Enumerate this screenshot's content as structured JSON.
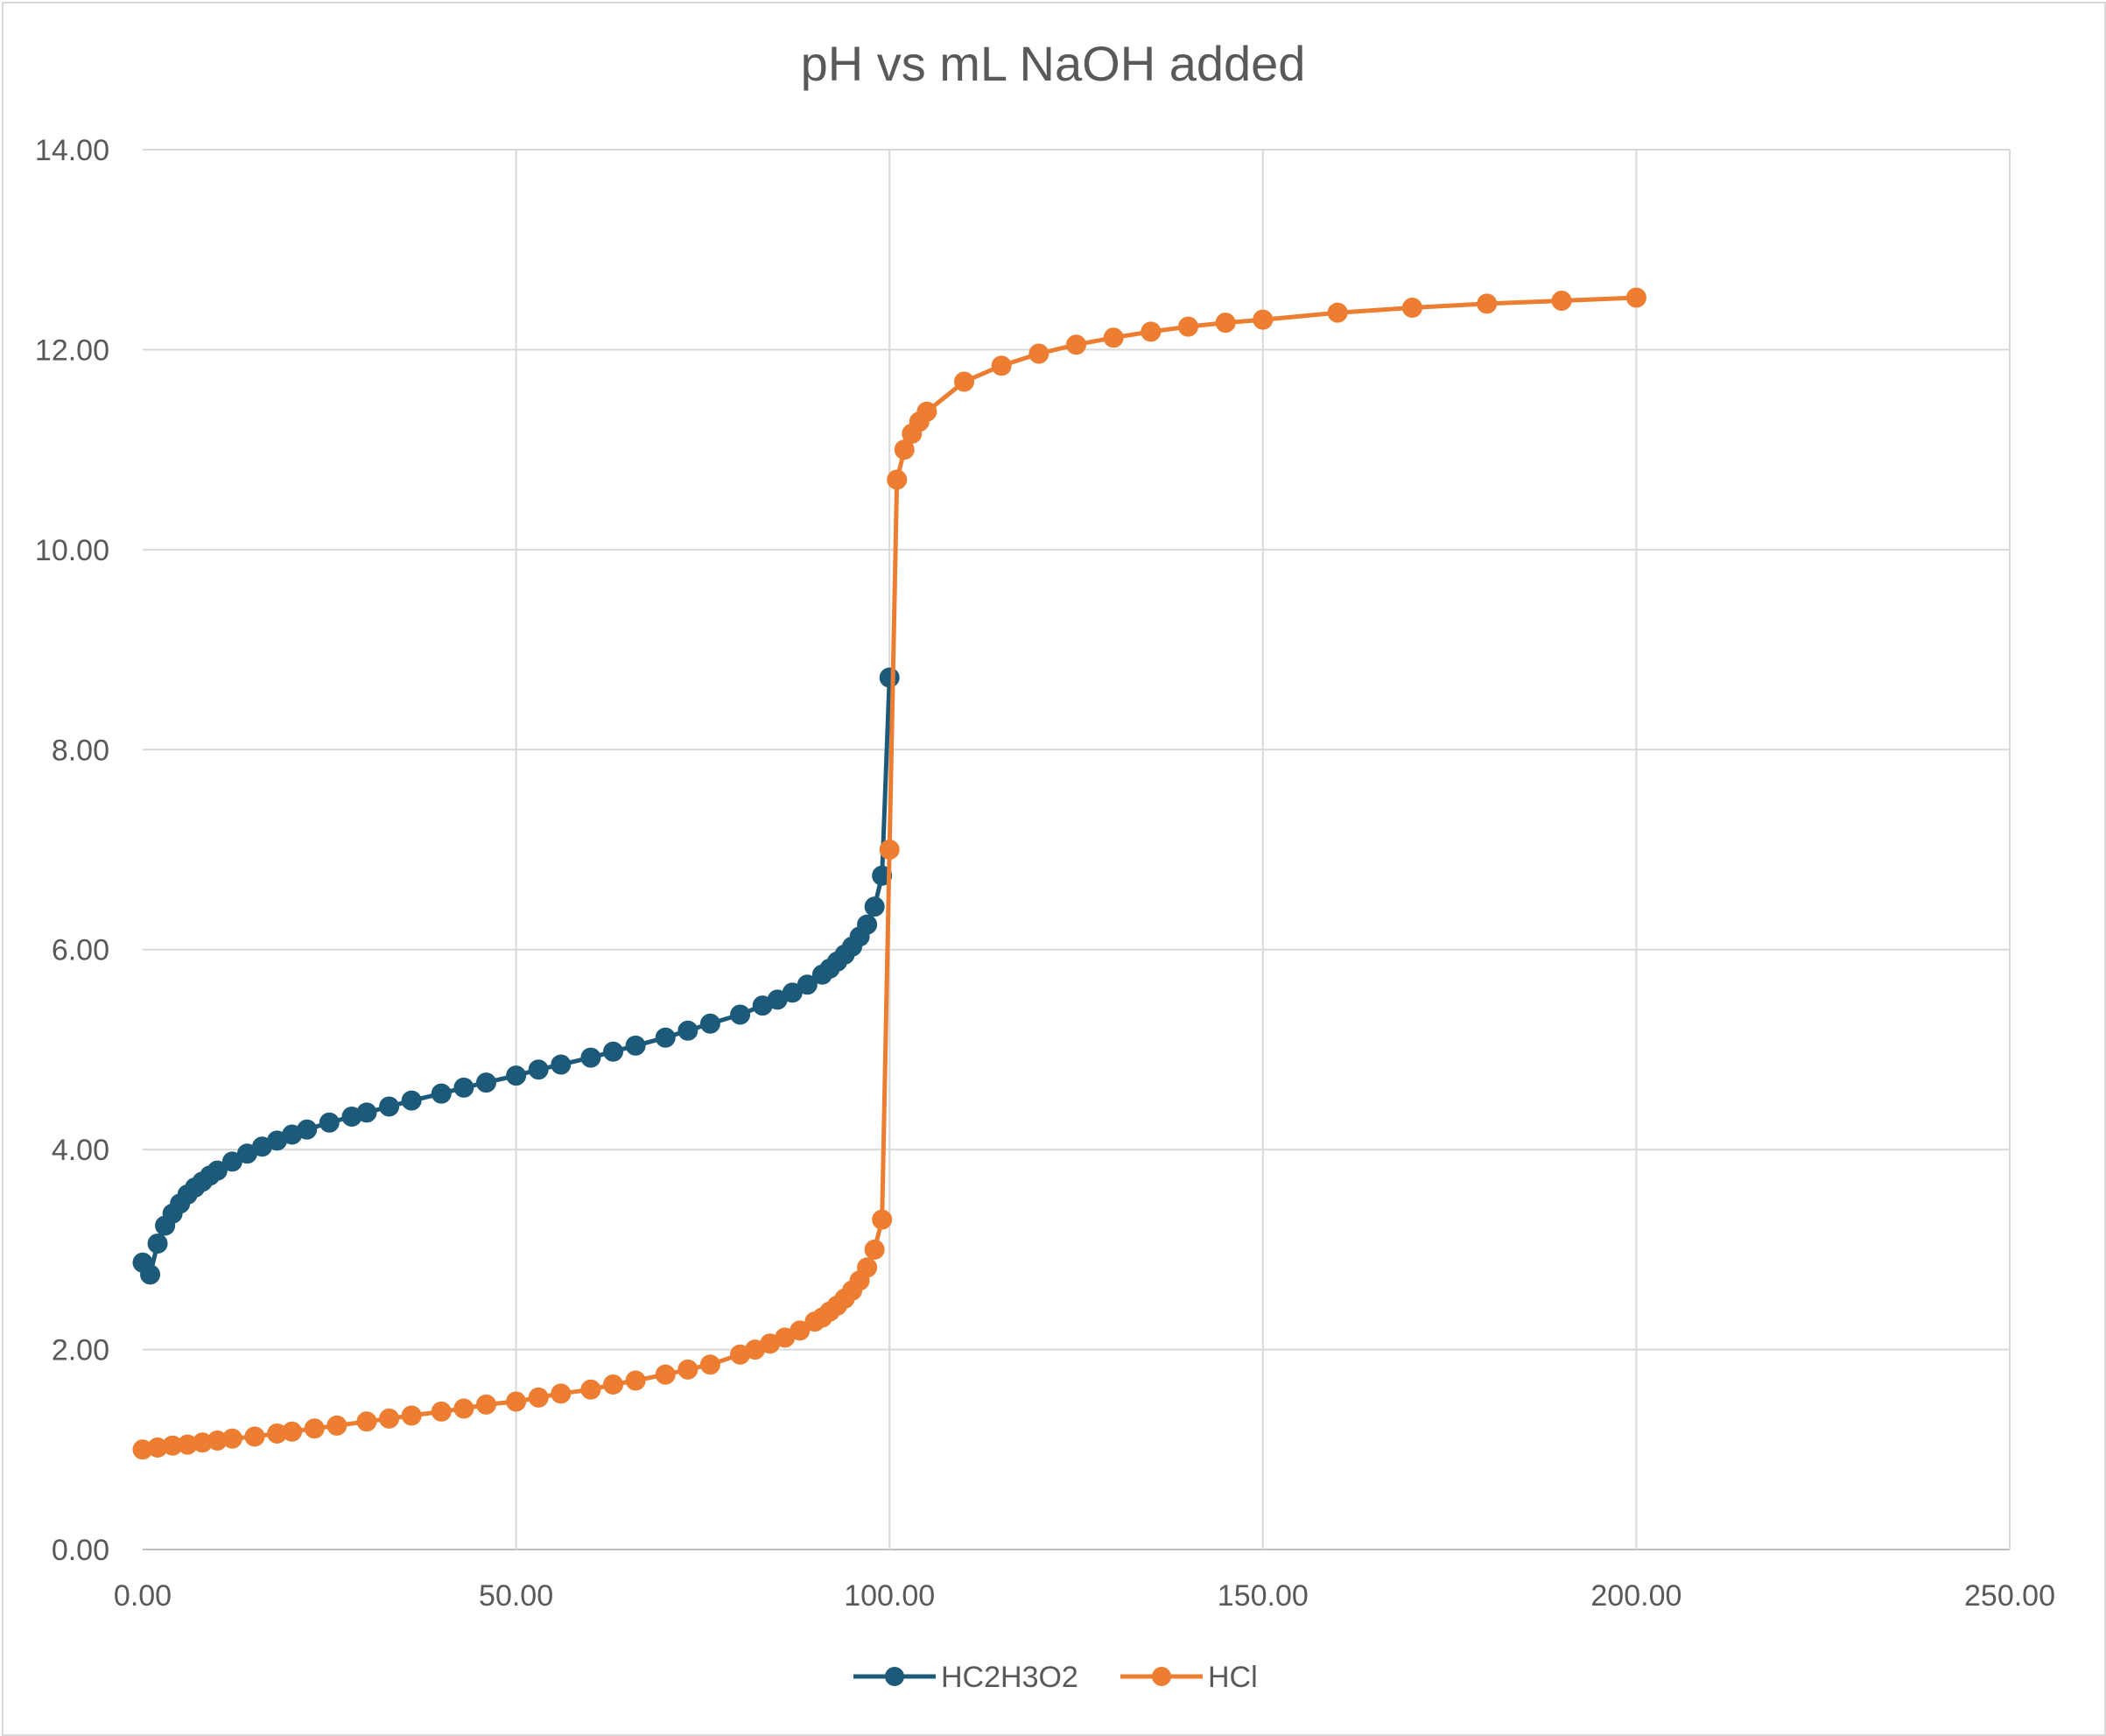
{
  "chart_data": {
    "type": "scatter",
    "title": "pH vs mL NaOH added",
    "xlabel": "",
    "ylabel": "",
    "xlim": [
      0,
      250
    ],
    "ylim": [
      0,
      14
    ],
    "x_ticks": [
      "0.00",
      "50.00",
      "100.00",
      "150.00",
      "200.00",
      "250.00"
    ],
    "y_ticks": [
      "0.00",
      "2.00",
      "4.00",
      "6.00",
      "8.00",
      "10.00",
      "12.00",
      "14.00"
    ],
    "grid": true,
    "legend_position": "bottom",
    "series": [
      {
        "name": "HC2H3O2",
        "color": "#1d5a7a",
        "marker": "circle",
        "x": [
          0,
          1,
          2,
          3,
          4,
          5,
          6,
          7,
          8,
          9,
          10,
          12,
          14,
          16,
          18,
          20,
          22,
          25,
          28,
          30,
          33,
          36,
          40,
          43,
          46,
          50,
          53,
          56,
          60,
          63,
          66,
          70,
          73,
          76,
          80,
          83,
          85,
          87,
          89,
          91,
          92,
          93,
          94,
          95,
          96,
          97,
          98,
          99,
          100
        ],
        "y": [
          2.87,
          2.75,
          3.06,
          3.24,
          3.36,
          3.46,
          3.55,
          3.62,
          3.68,
          3.74,
          3.79,
          3.88,
          3.96,
          4.03,
          4.09,
          4.15,
          4.2,
          4.27,
          4.33,
          4.37,
          4.43,
          4.49,
          4.56,
          4.62,
          4.67,
          4.74,
          4.8,
          4.85,
          4.92,
          4.98,
          5.04,
          5.12,
          5.19,
          5.26,
          5.35,
          5.44,
          5.5,
          5.57,
          5.65,
          5.75,
          5.81,
          5.88,
          5.95,
          6.03,
          6.13,
          6.25,
          6.43,
          6.74,
          8.72
        ]
      },
      {
        "name": "HCl",
        "color": "#ed7d31",
        "marker": "circle",
        "x": [
          0,
          2,
          4,
          6,
          8,
          10,
          12,
          15,
          18,
          20,
          23,
          26,
          30,
          33,
          36,
          40,
          43,
          46,
          50,
          53,
          56,
          60,
          63,
          66,
          70,
          73,
          76,
          80,
          82,
          84,
          86,
          88,
          90,
          91,
          92,
          93,
          94,
          95,
          96,
          97,
          98,
          99,
          100,
          101,
          102,
          103,
          104,
          105,
          110,
          115,
          120,
          125,
          130,
          135,
          140,
          145,
          150,
          160,
          170,
          180,
          190,
          200
        ],
        "y": [
          1.0,
          1.02,
          1.04,
          1.05,
          1.07,
          1.09,
          1.11,
          1.13,
          1.16,
          1.18,
          1.21,
          1.24,
          1.28,
          1.31,
          1.34,
          1.38,
          1.41,
          1.45,
          1.48,
          1.52,
          1.56,
          1.6,
          1.65,
          1.69,
          1.75,
          1.8,
          1.85,
          1.95,
          2.0,
          2.06,
          2.12,
          2.19,
          2.28,
          2.32,
          2.38,
          2.44,
          2.51,
          2.59,
          2.69,
          2.82,
          3.0,
          3.3,
          7.0,
          10.7,
          11.0,
          11.16,
          11.28,
          11.38,
          11.68,
          11.84,
          11.96,
          12.05,
          12.12,
          12.18,
          12.23,
          12.27,
          12.3,
          12.37,
          12.42,
          12.46,
          12.49,
          12.52
        ]
      }
    ]
  }
}
